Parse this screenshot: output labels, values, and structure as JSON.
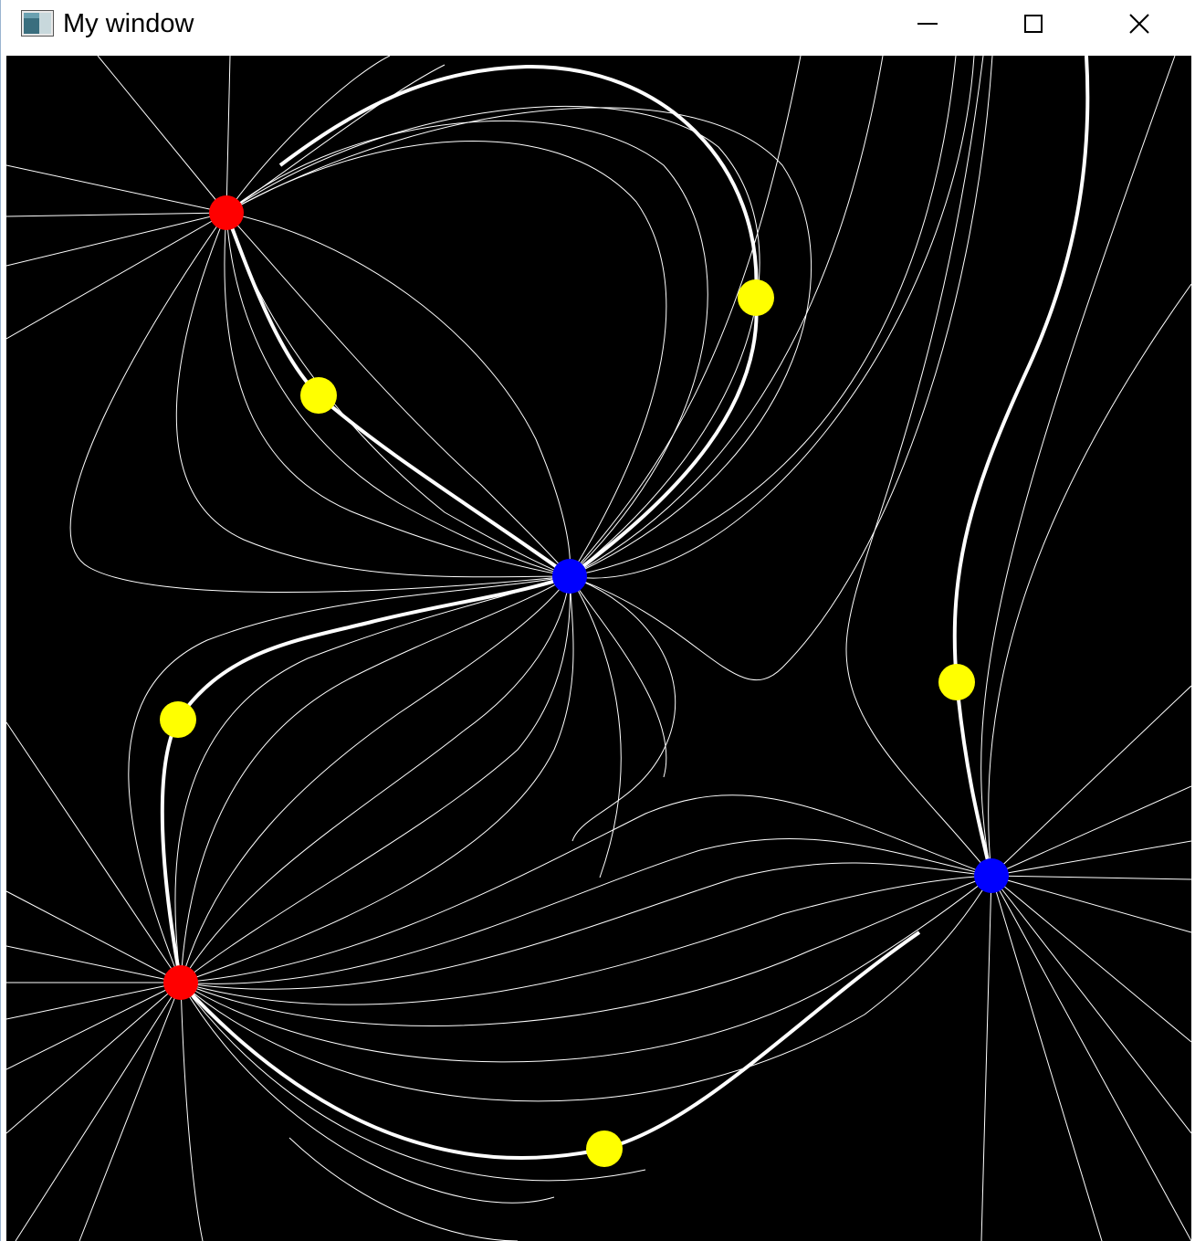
{
  "window": {
    "title": "My window",
    "icons": {
      "app": "window-app-icon",
      "minimize": "minimize-icon",
      "maximize": "maximize-icon",
      "close": "close-icon"
    }
  },
  "canvas": {
    "background": "#000000",
    "line_color": "#ffffff",
    "charge_colors": {
      "positive": "#ff0000",
      "negative": "#0000ff",
      "probe": "#ffff00"
    },
    "charges": [
      {
        "id": "red-1",
        "kind": "positive"
      },
      {
        "id": "red-2",
        "kind": "positive"
      },
      {
        "id": "blue-1",
        "kind": "negative"
      },
      {
        "id": "blue-2",
        "kind": "negative"
      }
    ],
    "probes": [
      "probe-1",
      "probe-2",
      "probe-3",
      "probe-4",
      "probe-5",
      "probe-6"
    ]
  }
}
